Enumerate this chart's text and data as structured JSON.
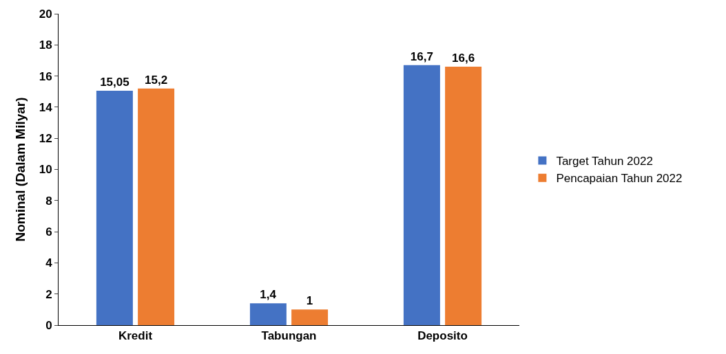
{
  "chart_data": {
    "type": "bar",
    "ylabel": "Nominal (Dalam Milyar)",
    "categories": [
      "Kredit",
      "Tabungan",
      "Deposito"
    ],
    "series": [
      {
        "name": "Target Tahun 2022",
        "color": "#4472c4",
        "values": [
          15.05,
          1.4,
          16.7
        ],
        "value_labels": [
          "15,05",
          "1,4",
          "16,7"
        ]
      },
      {
        "name": "Pencapaian Tahun 2022",
        "color": "#ed7d31",
        "values": [
          15.2,
          1,
          16.6
        ],
        "value_labels": [
          "15,2",
          "1",
          "16,6"
        ]
      }
    ],
    "ylim": [
      0,
      20
    ],
    "yticks": [
      0,
      2,
      4,
      6,
      8,
      10,
      12,
      14,
      16,
      18,
      20
    ],
    "grid": false,
    "legend": "right"
  }
}
